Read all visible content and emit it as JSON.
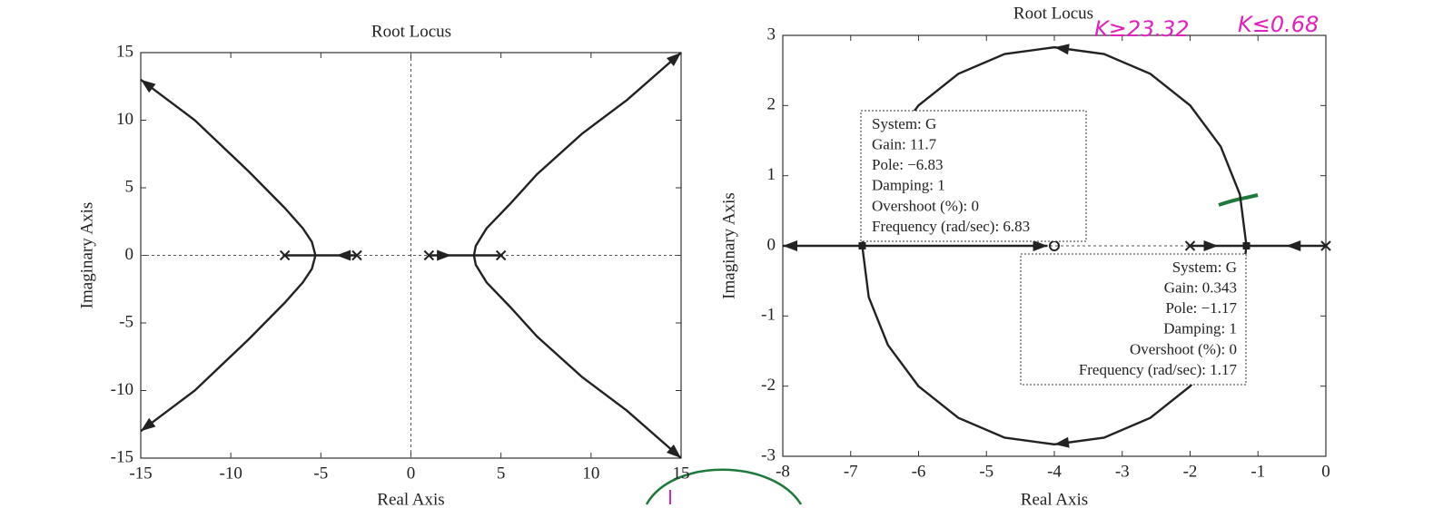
{
  "chart_data": [
    {
      "type": "line",
      "title": "Root Locus",
      "xlabel": "Real Axis",
      "ylabel": "Imaginary Axis",
      "xlim": [
        -15,
        15
      ],
      "ylim": [
        -15,
        15
      ],
      "xticks": [
        -15,
        -10,
        -5,
        0,
        5,
        10,
        15
      ],
      "yticks": [
        -15,
        -10,
        -5,
        0,
        5,
        10,
        15
      ],
      "zero_lines": true,
      "color": "#222222",
      "series": [
        {
          "arrow": "end",
          "x": [
            -5.3,
            -5.5,
            -6,
            -7,
            -9,
            -12,
            -15
          ],
          "values": [
            0,
            1,
            2,
            3.5,
            6.2,
            10,
            13
          ]
        },
        {
          "arrow": "end",
          "x": [
            -5.3,
            -5.5,
            -6,
            -7,
            -9,
            -12,
            -15
          ],
          "values": [
            0,
            -1,
            -2,
            -3.5,
            -6.2,
            -10,
            -13
          ]
        },
        {
          "arrow": "end",
          "x": [
            3.5,
            3.6,
            4.2,
            5.5,
            7,
            9.5,
            12,
            15
          ],
          "values": [
            0,
            0.7,
            2,
            3.8,
            6,
            9,
            11.5,
            15
          ]
        },
        {
          "arrow": "end",
          "x": [
            3.5,
            3.6,
            4.2,
            5.5,
            7,
            9.5,
            12,
            15
          ],
          "values": [
            0,
            -0.7,
            -2,
            -3.8,
            -6,
            -9,
            -11.5,
            -15
          ]
        },
        {
          "arrow": "mid",
          "x": [
            -3,
            -5.3
          ],
          "values": [
            0,
            0
          ]
        },
        {
          "arrow": "none",
          "x": [
            -7,
            -5.3
          ],
          "values": [
            0,
            0
          ]
        },
        {
          "arrow": "mid",
          "x": [
            1,
            3.5
          ],
          "values": [
            0,
            0
          ]
        },
        {
          "arrow": "none",
          "x": [
            5,
            3.5
          ],
          "values": [
            0,
            0
          ]
        }
      ],
      "markers": [
        {
          "shape": "x",
          "x": [
            -7,
            -3,
            1,
            5
          ],
          "values": [
            0,
            0,
            0,
            0
          ]
        }
      ]
    },
    {
      "type": "line",
      "title": "Root Locus",
      "xlabel": "Real Axis",
      "ylabel": "Imaginary Axis",
      "xlim": [
        -8,
        0
      ],
      "ylim": [
        -3,
        3
      ],
      "xticks": [
        -8,
        -7,
        -6,
        -5,
        -4,
        -3,
        -2,
        -1,
        0
      ],
      "yticks": [
        -3,
        -2,
        -1,
        0,
        1,
        2,
        3
      ],
      "zero_lines": true,
      "color": "#222222",
      "series": [
        {
          "arrow": "mid",
          "x": [
            -1.17,
            -1.266,
            -1.549,
            -1.999,
            -2.585,
            -3.268,
            -4,
            -4.732,
            -5.415,
            -6.001,
            -6.451,
            -6.734,
            -6.83
          ],
          "values": [
            0,
            0.732,
            1.415,
            2.001,
            2.451,
            2.734,
            2.83,
            2.734,
            2.451,
            2.001,
            1.415,
            0.732,
            0
          ]
        },
        {
          "arrow": "mid",
          "x": [
            -1.17,
            -1.266,
            -1.549,
            -1.999,
            -2.585,
            -3.268,
            -4,
            -4.732,
            -5.415,
            -6.001,
            -6.451,
            -6.734,
            -6.83
          ],
          "values": [
            0,
            -0.732,
            -1.415,
            -2.001,
            -2.451,
            -2.734,
            -2.83,
            -2.734,
            -2.451,
            -2.001,
            -1.415,
            -0.732,
            0
          ]
        },
        {
          "arrow": "end",
          "x": [
            -6.83,
            -8
          ],
          "values": [
            0,
            0
          ]
        },
        {
          "arrow": "end",
          "x": [
            -6.83,
            -4.1
          ],
          "values": [
            0,
            0
          ]
        },
        {
          "arrow": "mid",
          "x": [
            -2,
            -1.17
          ],
          "values": [
            0,
            0
          ]
        },
        {
          "arrow": "mid",
          "x": [
            0,
            -1.17
          ],
          "values": [
            0,
            0
          ]
        }
      ],
      "markers": [
        {
          "shape": "x",
          "x": [
            -2,
            0
          ],
          "values": [
            0,
            0
          ]
        },
        {
          "shape": "o",
          "x": [
            -4
          ],
          "values": [
            0
          ]
        },
        {
          "shape": "square",
          "x": [
            -6.83,
            -1.17
          ],
          "values": [
            0,
            0
          ]
        }
      ],
      "datatips": [
        [
          "System: G",
          "Gain: 11.7",
          "Pole: −6.83",
          "Damping: 1",
          "Overshoot (%): 0",
          "Frequency (rad/sec): 6.83"
        ],
        [
          "System: G",
          "Gain: 0.343",
          "Pole: −1.17",
          "Damping: 1",
          "Overshoot (%): 0",
          "Frequency (rad/sec): 1.17"
        ]
      ],
      "handwritten": [
        "K≥23.32",
        "K≤0.68"
      ]
    }
  ]
}
